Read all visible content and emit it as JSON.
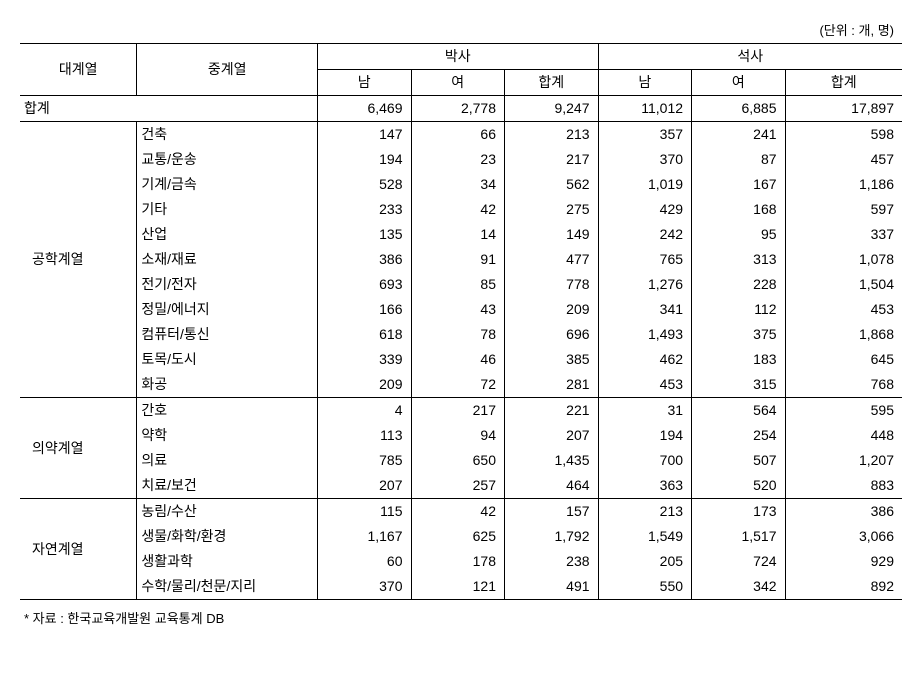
{
  "unit_label": "(단위 : 개, 명)",
  "headers": {
    "category": "대계열",
    "subcategory": "중계열",
    "group1": "박사",
    "group2": "석사",
    "male": "남",
    "female": "여",
    "total": "합계"
  },
  "total_row": {
    "label": "합계",
    "phd_m": "6,469",
    "phd_f": "2,778",
    "phd_t": "9,247",
    "ms_m": "11,012",
    "ms_f": "6,885",
    "ms_t": "17,897"
  },
  "groups": [
    {
      "name": "공학계열",
      "rows": [
        {
          "sub": "건축",
          "phd_m": "147",
          "phd_f": "66",
          "phd_t": "213",
          "ms_m": "357",
          "ms_f": "241",
          "ms_t": "598"
        },
        {
          "sub": "교통/운송",
          "phd_m": "194",
          "phd_f": "23",
          "phd_t": "217",
          "ms_m": "370",
          "ms_f": "87",
          "ms_t": "457"
        },
        {
          "sub": "기계/금속",
          "phd_m": "528",
          "phd_f": "34",
          "phd_t": "562",
          "ms_m": "1,019",
          "ms_f": "167",
          "ms_t": "1,186"
        },
        {
          "sub": "기타",
          "phd_m": "233",
          "phd_f": "42",
          "phd_t": "275",
          "ms_m": "429",
          "ms_f": "168",
          "ms_t": "597"
        },
        {
          "sub": "산업",
          "phd_m": "135",
          "phd_f": "14",
          "phd_t": "149",
          "ms_m": "242",
          "ms_f": "95",
          "ms_t": "337"
        },
        {
          "sub": "소재/재료",
          "phd_m": "386",
          "phd_f": "91",
          "phd_t": "477",
          "ms_m": "765",
          "ms_f": "313",
          "ms_t": "1,078"
        },
        {
          "sub": "전기/전자",
          "phd_m": "693",
          "phd_f": "85",
          "phd_t": "778",
          "ms_m": "1,276",
          "ms_f": "228",
          "ms_t": "1,504"
        },
        {
          "sub": "정밀/에너지",
          "phd_m": "166",
          "phd_f": "43",
          "phd_t": "209",
          "ms_m": "341",
          "ms_f": "112",
          "ms_t": "453"
        },
        {
          "sub": "컴퓨터/통신",
          "phd_m": "618",
          "phd_f": "78",
          "phd_t": "696",
          "ms_m": "1,493",
          "ms_f": "375",
          "ms_t": "1,868"
        },
        {
          "sub": "토목/도시",
          "phd_m": "339",
          "phd_f": "46",
          "phd_t": "385",
          "ms_m": "462",
          "ms_f": "183",
          "ms_t": "645"
        },
        {
          "sub": "화공",
          "phd_m": "209",
          "phd_f": "72",
          "phd_t": "281",
          "ms_m": "453",
          "ms_f": "315",
          "ms_t": "768"
        }
      ]
    },
    {
      "name": "의약계열",
      "rows": [
        {
          "sub": "간호",
          "phd_m": "4",
          "phd_f": "217",
          "phd_t": "221",
          "ms_m": "31",
          "ms_f": "564",
          "ms_t": "595"
        },
        {
          "sub": "약학",
          "phd_m": "113",
          "phd_f": "94",
          "phd_t": "207",
          "ms_m": "194",
          "ms_f": "254",
          "ms_t": "448"
        },
        {
          "sub": "의료",
          "phd_m": "785",
          "phd_f": "650",
          "phd_t": "1,435",
          "ms_m": "700",
          "ms_f": "507",
          "ms_t": "1,207"
        },
        {
          "sub": "치료/보건",
          "phd_m": "207",
          "phd_f": "257",
          "phd_t": "464",
          "ms_m": "363",
          "ms_f": "520",
          "ms_t": "883"
        }
      ]
    },
    {
      "name": "자연계열",
      "rows": [
        {
          "sub": "농림/수산",
          "phd_m": "115",
          "phd_f": "42",
          "phd_t": "157",
          "ms_m": "213",
          "ms_f": "173",
          "ms_t": "386"
        },
        {
          "sub": "생물/화학/환경",
          "phd_m": "1,167",
          "phd_f": "625",
          "phd_t": "1,792",
          "ms_m": "1,549",
          "ms_f": "1,517",
          "ms_t": "3,066"
        },
        {
          "sub": "생활과학",
          "phd_m": "60",
          "phd_f": "178",
          "phd_t": "238",
          "ms_m": "205",
          "ms_f": "724",
          "ms_t": "929"
        },
        {
          "sub": "수학/물리/천문/지리",
          "phd_m": "370",
          "phd_f": "121",
          "phd_t": "491",
          "ms_m": "550",
          "ms_f": "342",
          "ms_t": "892"
        }
      ]
    }
  ],
  "footnote": "* 자료 : 한국교육개발원 교육통계 DB"
}
